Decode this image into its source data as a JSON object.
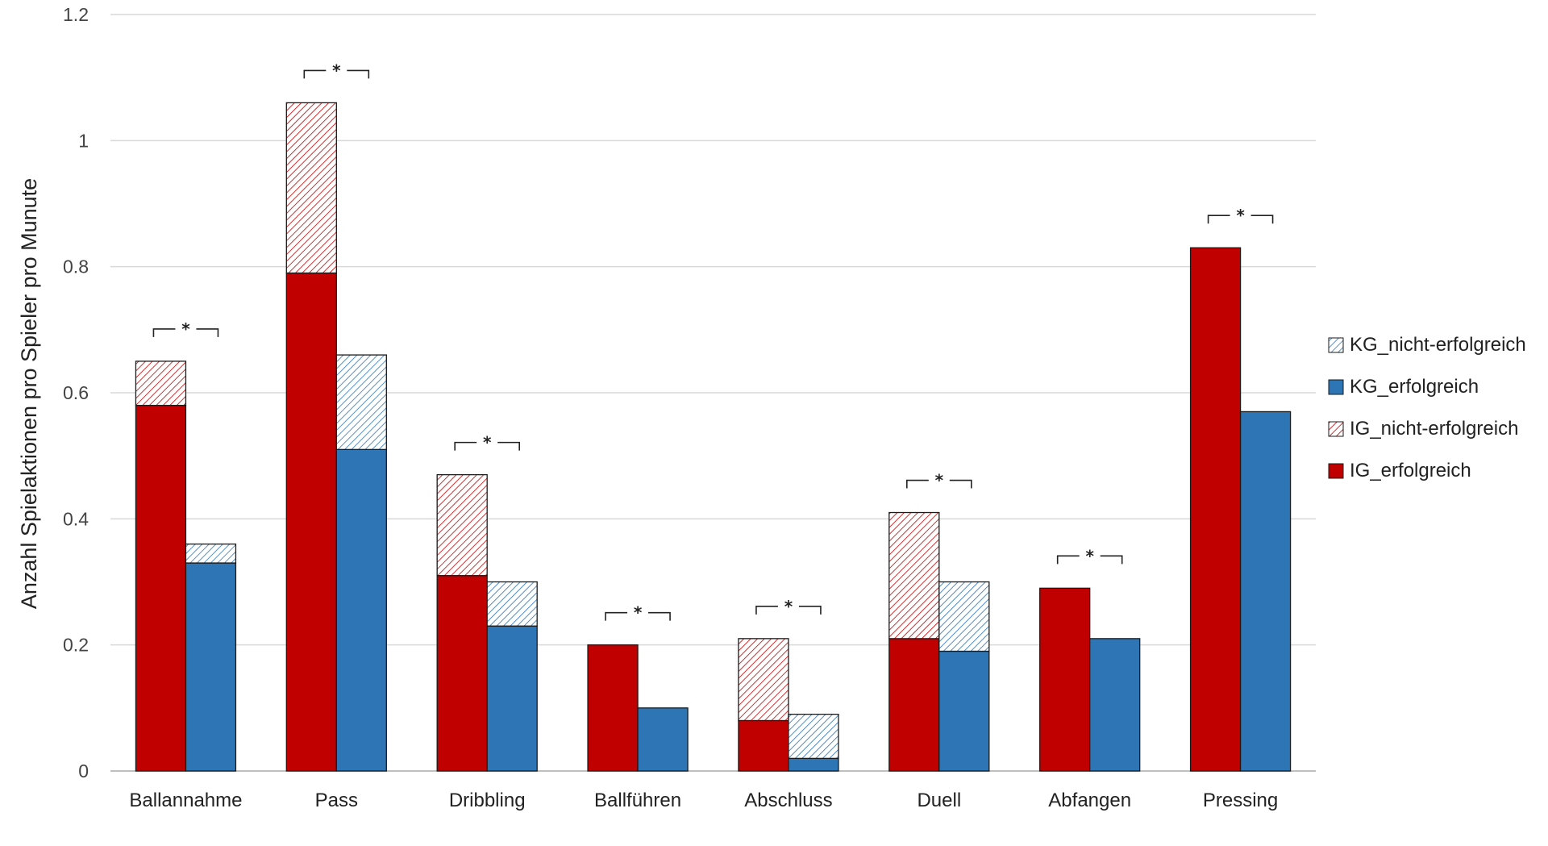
{
  "chart_data": {
    "type": "bar",
    "stacked": true,
    "ylabel": "Anzahl Spielaktionen pro Spieler pro Munute",
    "xlabel": "",
    "ylim": [
      0,
      1.2
    ],
    "yticks": [
      "0",
      "0.2",
      "0.4",
      "0.6",
      "0.8",
      "1",
      "1.2"
    ],
    "grid": true,
    "legend_position": "right",
    "categories": [
      "Ballannahme",
      "Pass",
      "Dribbling",
      "Ballführen",
      "Abschluss",
      "Duell",
      "Abfangen",
      "Pressing"
    ],
    "series": [
      {
        "name": "IG_erfolgreich",
        "group": "IG",
        "pattern": "solid",
        "color": "#c00000",
        "values": [
          0.58,
          0.79,
          0.31,
          0.2,
          0.08,
          0.21,
          0.29,
          0.83
        ]
      },
      {
        "name": "IG_nicht-erfolgreich",
        "group": "IG",
        "pattern": "hatched",
        "color": "#c00000",
        "values": [
          0.07,
          0.27,
          0.16,
          0.0,
          0.13,
          0.2,
          0.0,
          0.0
        ]
      },
      {
        "name": "KG_erfolgreich",
        "group": "KG",
        "pattern": "solid",
        "color": "#2e75b6",
        "values": [
          0.33,
          0.51,
          0.23,
          0.1,
          0.02,
          0.19,
          0.21,
          0.57
        ]
      },
      {
        "name": "KG_nicht-erfolgreich",
        "group": "KG",
        "pattern": "hatched",
        "color": "#2e75b6",
        "values": [
          0.03,
          0.15,
          0.07,
          0.0,
          0.07,
          0.11,
          0.0,
          0.0
        ]
      }
    ],
    "legend_order": [
      "KG_nicht-erfolgreich",
      "KG_erfolgreich",
      "IG_nicht-erfolgreich",
      "IG_erfolgreich"
    ],
    "significance_marker": "*",
    "significant": [
      true,
      true,
      true,
      true,
      true,
      true,
      true,
      true
    ]
  }
}
